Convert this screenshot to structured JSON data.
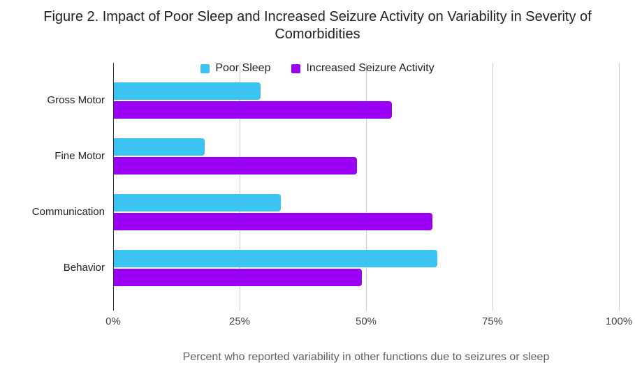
{
  "chart_data": {
    "type": "bar",
    "orientation": "horizontal",
    "title": "Figure 2. Impact of Poor Sleep and Increased Seizure Activity on Variability in Severity of Comorbidities",
    "categories": [
      "Gross Motor",
      "Fine Motor",
      "Communication",
      "Behavior"
    ],
    "series": [
      {
        "name": "Poor Sleep",
        "color": "#3CC4F0",
        "values": [
          29,
          18,
          33,
          64
        ]
      },
      {
        "name": "Increased Seizure Activity",
        "color": "#9900F5",
        "values": [
          55,
          48,
          63,
          49
        ]
      }
    ],
    "xlabel": "Percent who reported variability in other functions due to seizures or sleep",
    "x_ticks": [
      "0%",
      "25%",
      "50%",
      "75%",
      "100%"
    ],
    "x_tick_values": [
      0,
      25,
      50,
      75,
      100
    ],
    "xlim": [
      0,
      100
    ],
    "grid": true,
    "legend_position": "top",
    "colors": {
      "gridline": "#cccccc",
      "axis": "#333333",
      "title_text": "#212121",
      "tick_text": "#424242",
      "xlabel_text": "#5f6368"
    }
  }
}
